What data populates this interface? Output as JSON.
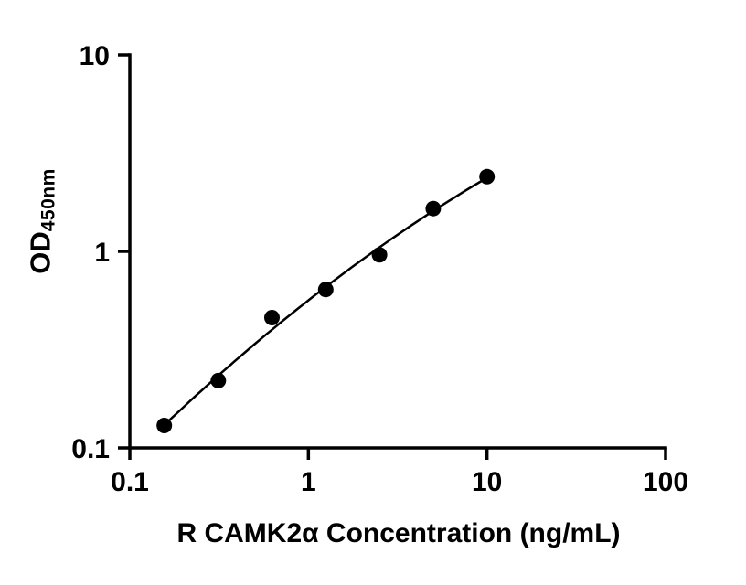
{
  "figure": {
    "background": "#ffffff",
    "ylabel_main": "OD",
    "ylabel_sub": "450nm",
    "xlabel": "R CAMK2α Concentration (ng/mL)"
  },
  "chart_data": {
    "type": "scatter",
    "title": "",
    "xlabel": "R CAMK2α Concentration (ng/mL)",
    "ylabel": "OD450nm",
    "x": [
      0.156,
      0.313,
      0.625,
      1.25,
      2.5,
      5,
      10
    ],
    "y": [
      0.13,
      0.22,
      0.46,
      0.64,
      0.96,
      1.65,
      2.4
    ],
    "x_scale": "log",
    "y_scale": "log",
    "xlim": [
      0.1,
      100
    ],
    "ylim": [
      0.1,
      10
    ],
    "x_ticks": [
      "0.1",
      "1",
      "10",
      "100"
    ],
    "y_ticks": [
      "0.1",
      "1",
      "10"
    ],
    "grid": false,
    "legend": "none",
    "curve_fit": "smooth standard-curve fit through points",
    "axis_color": "#000000",
    "line_color": "#000000",
    "marker_color": "#000000",
    "marker_size_px": 17
  }
}
